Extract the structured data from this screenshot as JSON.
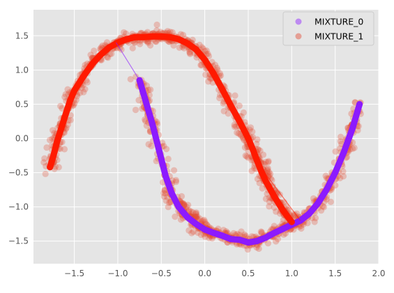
{
  "chart_data": {
    "type": "scatter",
    "title": "",
    "xlabel": "",
    "ylabel": "",
    "xlim": [
      -1.97,
      2.0
    ],
    "ylim": [
      -1.83,
      1.88
    ],
    "x_ticks": [
      -1.5,
      -1.0,
      -0.5,
      0.0,
      0.5,
      1.0,
      1.5,
      2.0
    ],
    "x_tick_labels": [
      "−1.5",
      "−1.0",
      "−0.5",
      "0.0",
      "0.5",
      "1.0",
      "1.5",
      "2.0"
    ],
    "y_ticks": [
      -1.5,
      -1.0,
      -0.5,
      0.0,
      0.5,
      1.0,
      1.5
    ],
    "y_tick_labels": [
      "−1.5",
      "−1.0",
      "−0.5",
      "0.0",
      "0.5",
      "1.0",
      "1.5"
    ],
    "grid": true,
    "background": "#e5e5e5",
    "legend_position": "top-right",
    "legend": [
      {
        "label": "MIXTURE_0",
        "color": "#8c1aff"
      },
      {
        "label": "MIXTURE_1",
        "color": "#ff1a00"
      }
    ],
    "series": [
      {
        "name": "MIXTURE_0",
        "color": "#8c1aff",
        "x": [
          -0.75,
          -0.68,
          -0.6,
          -0.52,
          -0.45,
          -0.38,
          -0.3,
          -0.2,
          -0.1,
          0.0,
          0.1,
          0.2,
          0.3,
          0.4,
          0.5,
          0.6,
          0.7,
          0.8,
          0.9,
          1.0,
          1.1,
          1.2,
          1.3,
          1.4,
          1.5,
          1.6,
          1.7,
          1.78
        ],
        "y": [
          0.85,
          0.55,
          0.2,
          -0.2,
          -0.55,
          -0.8,
          -1.0,
          -1.15,
          -1.25,
          -1.33,
          -1.38,
          -1.42,
          -1.47,
          -1.48,
          -1.52,
          -1.5,
          -1.45,
          -1.38,
          -1.32,
          -1.26,
          -1.2,
          -1.1,
          -0.95,
          -0.75,
          -0.5,
          -0.2,
          0.15,
          0.5
        ]
      },
      {
        "name": "MIXTURE_1",
        "color": "#ff1a00",
        "x": [
          -1.78,
          -1.74,
          -1.7,
          -1.65,
          -1.6,
          -1.55,
          -1.5,
          -1.4,
          -1.3,
          -1.2,
          -1.1,
          -1.0,
          -0.9,
          -0.8,
          -0.7,
          -0.6,
          -0.5,
          -0.4,
          -0.3,
          -0.2,
          -0.1,
          0.0,
          0.1,
          0.2,
          0.3,
          0.4,
          0.5,
          0.55,
          0.6,
          0.65,
          0.7,
          0.8,
          0.9,
          1.0
        ],
        "y": [
          -0.42,
          -0.25,
          -0.05,
          0.15,
          0.35,
          0.55,
          0.7,
          0.9,
          1.08,
          1.22,
          1.33,
          1.4,
          1.45,
          1.48,
          1.48,
          1.49,
          1.49,
          1.48,
          1.45,
          1.39,
          1.3,
          1.15,
          0.95,
          0.72,
          0.48,
          0.25,
          0.0,
          -0.15,
          -0.32,
          -0.48,
          -0.62,
          -0.85,
          -1.05,
          -1.22
        ]
      }
    ]
  }
}
